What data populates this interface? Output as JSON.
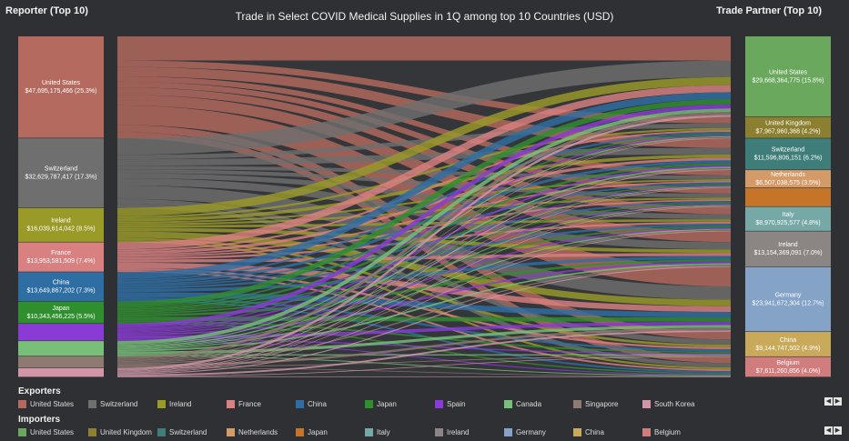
{
  "header": {
    "left_title": "Reporter (Top 10)",
    "right_title": "Trade Partner (Top 10)",
    "chart_title": "Trade in Select COVID Medical Supplies in 1Q among top 10 Countries (USD)"
  },
  "chart_data": {
    "type": "sankey",
    "title": "Trade in Select COVID Medical Supplies in 1Q among top 10 Countries (USD)",
    "reporters": [
      {
        "name": "United States",
        "value_label": "$47,695,175,466 (25.3%)",
        "share": 25.3,
        "color": "#b46a5e"
      },
      {
        "name": "Switzerland",
        "value_label": "$32,629,787,417 (17.3%)",
        "share": 17.3,
        "color": "#6f6f6f"
      },
      {
        "name": "Ireland",
        "value_label": "$16,039,614,042 (8.5%)",
        "share": 8.5,
        "color": "#9a9a28"
      },
      {
        "name": "France",
        "value_label": "$13,953,581,509 (7.4%)",
        "share": 7.4,
        "color": "#d98080"
      },
      {
        "name": "China",
        "value_label": "$13,649,867,202 (7.3%)",
        "share": 7.3,
        "color": "#2e6ea3"
      },
      {
        "name": "Japan",
        "value_label": "$10,343,456,225 (5.5%)",
        "share": 5.5,
        "color": "#2f8f2f"
      },
      {
        "name": "Spain",
        "value_label": "",
        "share": 4.3,
        "color": "#8a3bd6"
      },
      {
        "name": "Canada",
        "value_label": "",
        "share": 3.8,
        "color": "#78c07a"
      },
      {
        "name": "Singapore",
        "value_label": "",
        "share": 2.9,
        "color": "#8f7a72"
      },
      {
        "name": "South Korea",
        "value_label": "",
        "share": 2.3,
        "color": "#d197a8"
      }
    ],
    "partners": [
      {
        "name": "United States",
        "value_label": "$29,668,364,775 (15.8%)",
        "share": 15.8,
        "color": "#6aa85e"
      },
      {
        "name": "United Kingdom",
        "value_label": "$7,967,960,368 (4.2%)",
        "share": 4.2,
        "color": "#8c7f30"
      },
      {
        "name": "Switzerland",
        "value_label": "$11,596,806,151 (6.2%)",
        "share": 6.2,
        "color": "#3f7d7a"
      },
      {
        "name": "Netherlands",
        "value_label": "$6,507,038,575 (3.5%)",
        "share": 3.5,
        "color": "#d49a68"
      },
      {
        "name": "Japan",
        "value_label": "",
        "share": 3.7,
        "color": "#c67528"
      },
      {
        "name": "Italy",
        "value_label": "$8,970,925,577 (4.8%)",
        "share": 4.8,
        "color": "#76a9a6"
      },
      {
        "name": "Ireland",
        "value_label": "$13,154,369,091 (7.0%)",
        "share": 7.0,
        "color": "#8b8684"
      },
      {
        "name": "Germany",
        "value_label": "$23,941,672,304 (12.7%)",
        "share": 12.7,
        "color": "#84a3c6"
      },
      {
        "name": "China",
        "value_label": "$9,144,747,502 (4.9%)",
        "share": 4.9,
        "color": "#c9a95a"
      },
      {
        "name": "Belgium",
        "value_label": "$7,611,260,856 (4.0%)",
        "share": 4.0,
        "color": "#d17d7d"
      }
    ]
  },
  "legend": {
    "exporters_title": "Exporters",
    "exporters": [
      {
        "label": "United States",
        "color": "#b46a5e"
      },
      {
        "label": "Switzerland",
        "color": "#6f6f6f"
      },
      {
        "label": "Ireland",
        "color": "#9a9a28"
      },
      {
        "label": "France",
        "color": "#d98080"
      },
      {
        "label": "China",
        "color": "#2e6ea3"
      },
      {
        "label": "Japan",
        "color": "#2f8f2f"
      },
      {
        "label": "Spain",
        "color": "#8a3bd6"
      },
      {
        "label": "Canada",
        "color": "#78c07a"
      },
      {
        "label": "Singapore",
        "color": "#8f7a72"
      },
      {
        "label": "South Korea",
        "color": "#d197a8"
      }
    ],
    "importers_title": "Importers",
    "importers": [
      {
        "label": "United States",
        "color": "#6aa85e"
      },
      {
        "label": "United Kingdom",
        "color": "#8c7f30"
      },
      {
        "label": "Switzerland",
        "color": "#3f7d7a"
      },
      {
        "label": "Netherlands",
        "color": "#d49a68"
      },
      {
        "label": "Japan",
        "color": "#c67528"
      },
      {
        "label": "Italy",
        "color": "#76a9a6"
      },
      {
        "label": "Ireland",
        "color": "#8b8684"
      },
      {
        "label": "Germany",
        "color": "#84a3c6"
      },
      {
        "label": "China",
        "color": "#c9a95a"
      },
      {
        "label": "Belgium",
        "color": "#d17d7d"
      }
    ],
    "pager_prev": "◀",
    "pager_next": "▶"
  }
}
